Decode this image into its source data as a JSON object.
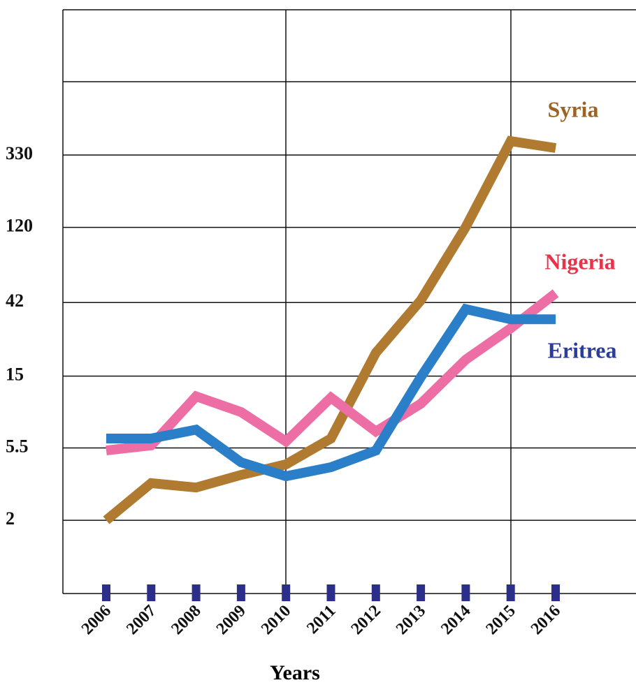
{
  "chart_data": {
    "type": "line",
    "x_label": "Years",
    "categories": [
      "2006",
      "2007",
      "2008",
      "2009",
      "2010",
      "2011",
      "2012",
      "2013",
      "2014",
      "2015",
      "2016"
    ],
    "series": [
      {
        "name": "Syria",
        "color": "#b07a30",
        "label_color": "#9c6424",
        "values": [
          2,
          3.36,
          3.16,
          3.77,
          4.37,
          6.27,
          20.8,
          43.3,
          120.7,
          401,
          364
        ]
      },
      {
        "name": "Nigeria",
        "color": "#ec6ea4",
        "label_color": "#e8334a",
        "values": [
          5.31,
          5.7,
          11.3,
          9.08,
          6.02,
          11.1,
          6.92,
          10.2,
          18.9,
          29.3,
          47.8
        ]
      },
      {
        "name": "Eritrea",
        "color": "#2a7fc8",
        "label_color": "#2b3d9a",
        "values": [
          6.27,
          6.27,
          7.1,
          4.5,
          3.7,
          4.2,
          5.3,
          14.8,
          38.3,
          33.2,
          33.2
        ]
      }
    ],
    "log_y": true,
    "ylim": [
      0.718,
      2515
    ],
    "yticks": [
      2,
      5.5,
      15,
      42,
      120,
      330
    ],
    "grid": true
  }
}
